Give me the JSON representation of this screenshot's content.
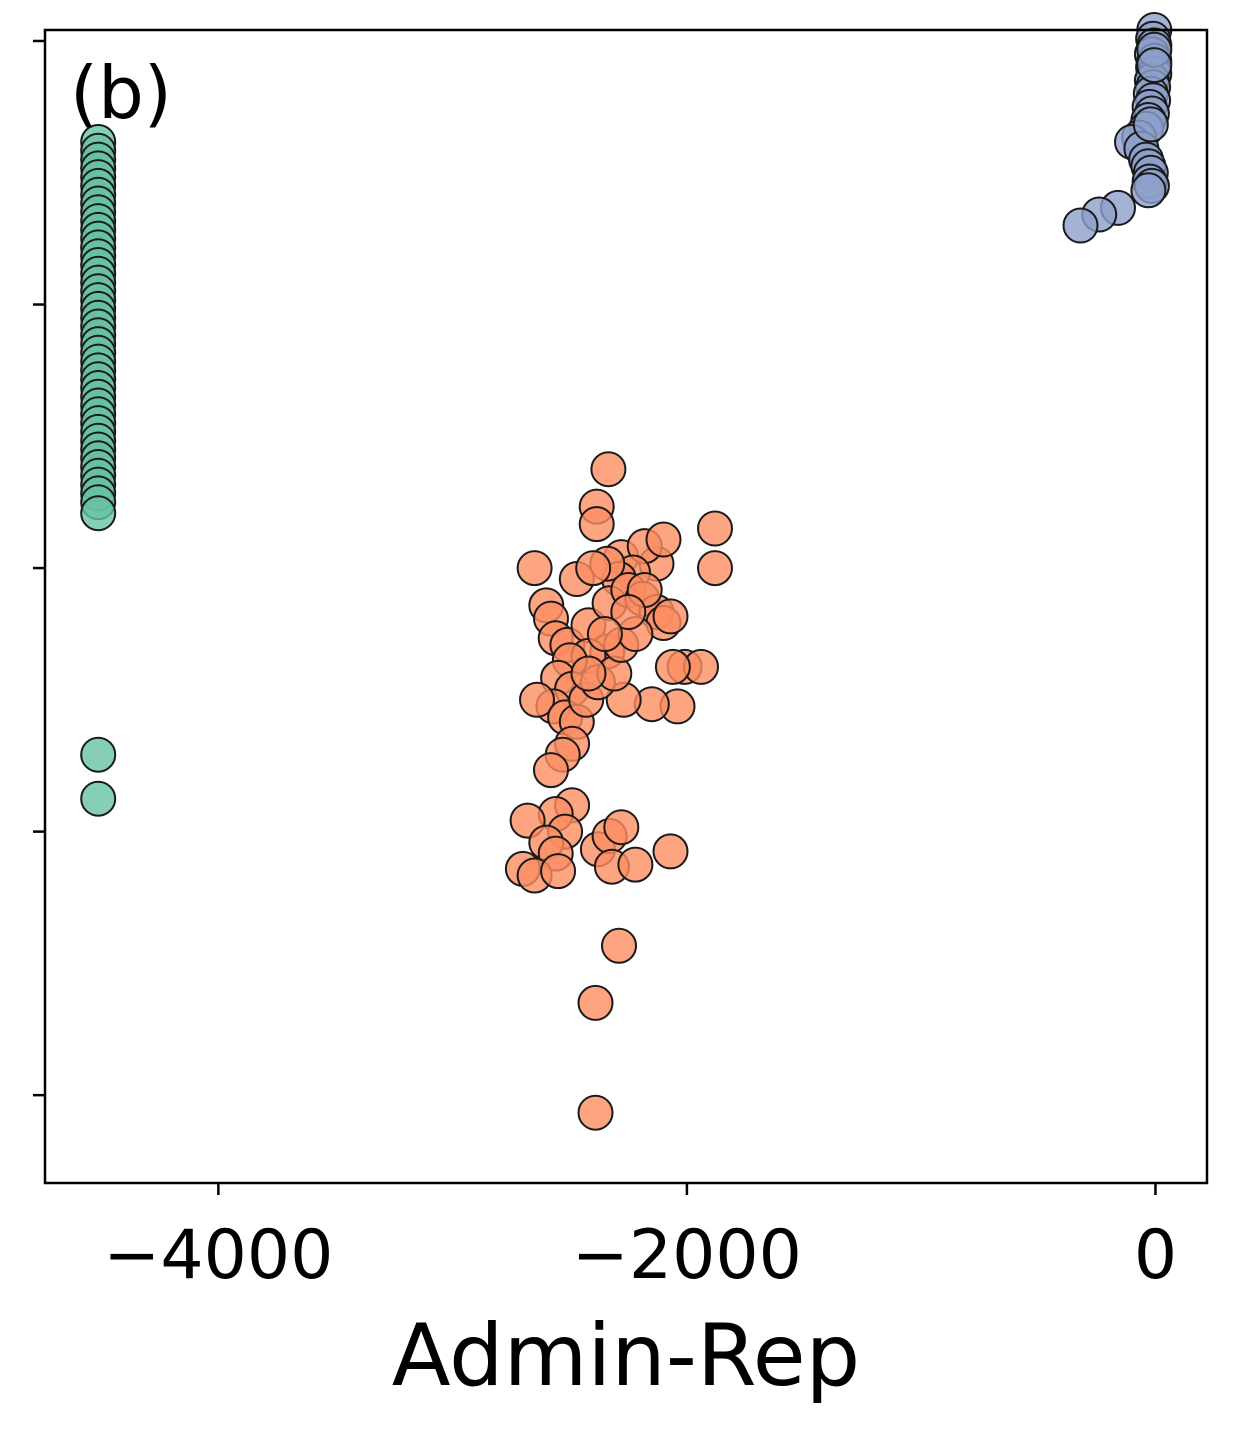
{
  "chart_data": {
    "type": "scatter",
    "panel_label": "(b)",
    "xlabel": "Admin-Rep",
    "ylabel": "",
    "xlim": [
      -4740,
      220
    ],
    "ylim": [
      -4.9,
      0.35
    ],
    "x_ticks": [
      -4000,
      -2000,
      0
    ],
    "x_tick_labels": [
      "−4000",
      "−2000",
      "0"
    ],
    "y_ticks": [
      -4.5,
      -3.3,
      -2.1,
      -0.9,
      0.3
    ],
    "y_tick_labels": [
      "",
      "",
      "",
      "",
      ""
    ],
    "grid": false,
    "series": [
      {
        "color": "#66c2a5",
        "points": [
          [
            -4513,
            -0.16
          ],
          [
            -4513,
            -0.2
          ],
          [
            -4513,
            -0.24
          ],
          [
            -4513,
            -0.28
          ],
          [
            -4513,
            -0.32
          ],
          [
            -4513,
            -0.36
          ],
          [
            -4513,
            -0.4
          ],
          [
            -4513,
            -0.44
          ],
          [
            -4513,
            -0.48
          ],
          [
            -4513,
            -0.52
          ],
          [
            -4513,
            -0.56
          ],
          [
            -4513,
            -0.6
          ],
          [
            -4513,
            -0.64
          ],
          [
            -4513,
            -0.68
          ],
          [
            -4513,
            -0.72
          ],
          [
            -4513,
            -0.76
          ],
          [
            -4513,
            -0.8
          ],
          [
            -4513,
            -0.84
          ],
          [
            -4513,
            -0.88
          ],
          [
            -4513,
            -0.92
          ],
          [
            -4513,
            -0.96
          ],
          [
            -4513,
            -1.0
          ],
          [
            -4513,
            -1.04
          ],
          [
            -4513,
            -1.08
          ],
          [
            -4513,
            -1.12
          ],
          [
            -4513,
            -1.16
          ],
          [
            -4513,
            -1.2
          ],
          [
            -4513,
            -1.24
          ],
          [
            -4513,
            -1.28
          ],
          [
            -4513,
            -1.32
          ],
          [
            -4513,
            -1.36
          ],
          [
            -4513,
            -1.4
          ],
          [
            -4513,
            -1.44
          ],
          [
            -4513,
            -1.48
          ],
          [
            -4513,
            -1.52
          ],
          [
            -4513,
            -1.56
          ],
          [
            -4513,
            -1.6
          ],
          [
            -4513,
            -1.64
          ],
          [
            -4513,
            -1.68
          ],
          [
            -4513,
            -1.72
          ],
          [
            -4513,
            -1.76
          ],
          [
            -4513,
            -1.8
          ],
          [
            -4513,
            -1.85
          ],
          [
            -4513,
            -2.95
          ],
          [
            -4513,
            -3.15
          ]
        ]
      },
      {
        "color": "#fc8d62",
        "points": [
          [
            -2335,
            -1.65
          ],
          [
            -2385,
            -1.82
          ],
          [
            -2385,
            -1.9
          ],
          [
            -2650,
            -2.1
          ],
          [
            -2280,
            -2.05
          ],
          [
            -2130,
            -2.08
          ],
          [
            -1880,
            -2.1
          ],
          [
            -1880,
            -1.92
          ],
          [
            -2180,
            -2.0
          ],
          [
            -2100,
            -1.97
          ],
          [
            -2230,
            -2.12
          ],
          [
            -2290,
            -2.15
          ],
          [
            -2340,
            -2.08
          ],
          [
            -2470,
            -2.15
          ],
          [
            -2400,
            -2.1
          ],
          [
            -2600,
            -2.27
          ],
          [
            -2580,
            -2.33
          ],
          [
            -2560,
            -2.42
          ],
          [
            -2510,
            -2.45
          ],
          [
            -2420,
            -2.36
          ],
          [
            -2330,
            -2.26
          ],
          [
            -2250,
            -2.2
          ],
          [
            -2190,
            -2.24
          ],
          [
            -2130,
            -2.3
          ],
          [
            -2100,
            -2.35
          ],
          [
            -2070,
            -2.32
          ],
          [
            -2010,
            -2.55
          ],
          [
            -1940,
            -2.55
          ],
          [
            -2040,
            -2.73
          ],
          [
            -2060,
            -2.55
          ],
          [
            -2150,
            -2.72
          ],
          [
            -2270,
            -2.7
          ],
          [
            -2340,
            -2.48
          ],
          [
            -2420,
            -2.5
          ],
          [
            -2500,
            -2.52
          ],
          [
            -2550,
            -2.6
          ],
          [
            -2490,
            -2.65
          ],
          [
            -2570,
            -2.73
          ],
          [
            -2640,
            -2.7
          ],
          [
            -2520,
            -2.78
          ],
          [
            -2470,
            -2.8
          ],
          [
            -2430,
            -2.7
          ],
          [
            -2380,
            -2.62
          ],
          [
            -2310,
            -2.58
          ],
          [
            -2280,
            -2.45
          ],
          [
            -2220,
            -2.4
          ],
          [
            -2180,
            -2.2
          ],
          [
            -2250,
            -2.3
          ],
          [
            -2350,
            -2.4
          ],
          [
            -2420,
            -2.58
          ],
          [
            -2490,
            -2.9
          ],
          [
            -2530,
            -2.95
          ],
          [
            -2580,
            -3.02
          ],
          [
            -2490,
            -3.18
          ],
          [
            -2560,
            -3.22
          ],
          [
            -2520,
            -3.3
          ],
          [
            -2680,
            -3.25
          ],
          [
            -2600,
            -3.35
          ],
          [
            -2560,
            -3.4
          ],
          [
            -2700,
            -3.47
          ],
          [
            -2650,
            -3.5
          ],
          [
            -2550,
            -3.48
          ],
          [
            -2380,
            -3.38
          ],
          [
            -2330,
            -3.32
          ],
          [
            -2280,
            -3.28
          ],
          [
            -2320,
            -3.46
          ],
          [
            -2220,
            -3.45
          ],
          [
            -2070,
            -3.39
          ],
          [
            -2290,
            -3.82
          ],
          [
            -2390,
            -4.08
          ],
          [
            -2390,
            -4.58
          ]
        ]
      },
      {
        "color": "#8da0cb",
        "points": [
          [
            -5,
            0.35
          ],
          [
            -10,
            0.31
          ],
          [
            -5,
            0.28
          ],
          [
            -15,
            0.24
          ],
          [
            -5,
            0.21
          ],
          [
            -10,
            0.18
          ],
          [
            -5,
            0.15
          ],
          [
            -15,
            0.12
          ],
          [
            -10,
            0.09
          ],
          [
            -20,
            0.06
          ],
          [
            -10,
            0.03
          ],
          [
            -25,
            0.0
          ],
          [
            -15,
            -0.03
          ],
          [
            -30,
            -0.06
          ],
          [
            -40,
            -0.1
          ],
          [
            -70,
            -0.14
          ],
          [
            -100,
            -0.16
          ],
          [
            -60,
            -0.19
          ],
          [
            -40,
            -0.24
          ],
          [
            -30,
            -0.27
          ],
          [
            -20,
            -0.3
          ],
          [
            -25,
            -0.34
          ],
          [
            -15,
            -0.36
          ],
          [
            -30,
            -0.38
          ],
          [
            -160,
            -0.46
          ],
          [
            -240,
            -0.49
          ],
          [
            -320,
            -0.54
          ],
          [
            -5,
            0.26
          ],
          [
            -5,
            0.19
          ],
          [
            -20,
            -0.08
          ]
        ]
      }
    ]
  }
}
